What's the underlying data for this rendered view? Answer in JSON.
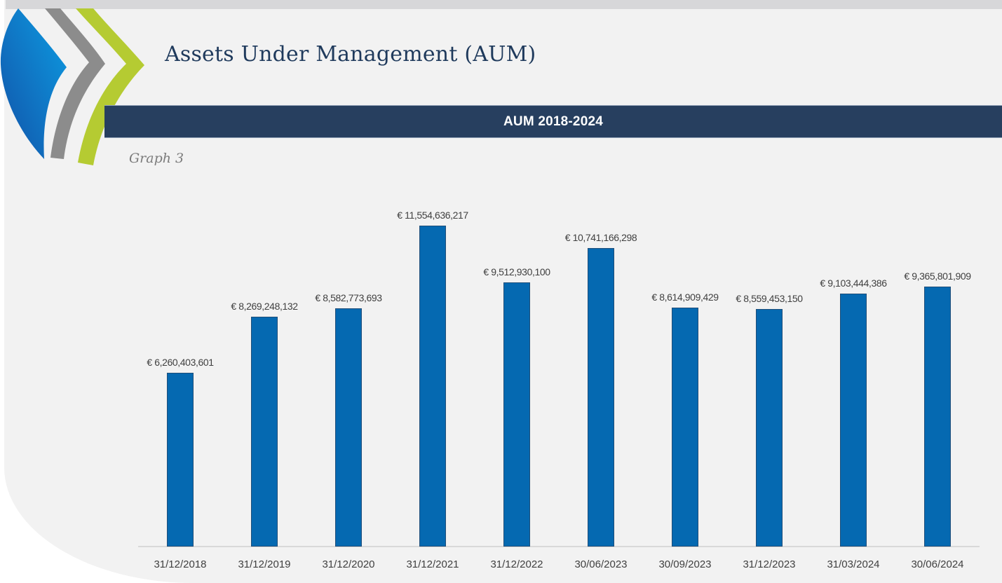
{
  "page": {
    "title": "Assets Under Management (AUM)",
    "banner": "AUM 2018-2024",
    "caption": "Graph 3"
  },
  "logo": {
    "description": "three chevron swoosh marks",
    "colors": {
      "blue_dark": "#1252a8",
      "blue_light": "#0d9ce2",
      "gray": "#8c8c8c",
      "green": "#b5cb32"
    }
  },
  "colors": {
    "page_bg": "#f2f2f2",
    "top_strip": "#d7d7d9",
    "banner_bg": "#273f5f",
    "banner_text": "#ffffff",
    "title_text": "#1f3a5c",
    "caption_text": "#7c7c7c",
    "bar_fill": "#0569b1",
    "bar_border": "#1f4e79",
    "axis_line": "#d9d9d9",
    "label_text": "#404040"
  },
  "chart_data": {
    "type": "bar",
    "title": "AUM 2018-2024",
    "categories": [
      "31/12/2018",
      "31/12/2019",
      "31/12/2020",
      "31/12/2021",
      "31/12/2022",
      "30/06/2023",
      "30/09/2023",
      "31/12/2023",
      "31/03/2024",
      "30/06/2024"
    ],
    "values": [
      6260403601,
      8269248132,
      8582773693,
      11554636217,
      9512930100,
      10741166298,
      8614909429,
      8559453150,
      9103444386,
      9365801909
    ],
    "data_labels": [
      "€ 6,260,403,601",
      "€ 8,269,248,132",
      "€ 8,582,773,693",
      "€ 11,554,636,217",
      "€ 9,512,930,100",
      "€ 10,741,166,298",
      "€ 8,614,909,429",
      "€ 8,559,453,150",
      "€ 9,103,444,386",
      "€ 9,365,801,909"
    ],
    "currency": "EUR",
    "xlabel": "",
    "ylabel": "",
    "ylim": [
      0,
      11554636217
    ],
    "grid": false,
    "legend": false,
    "data_labels_position": "above-bar"
  }
}
